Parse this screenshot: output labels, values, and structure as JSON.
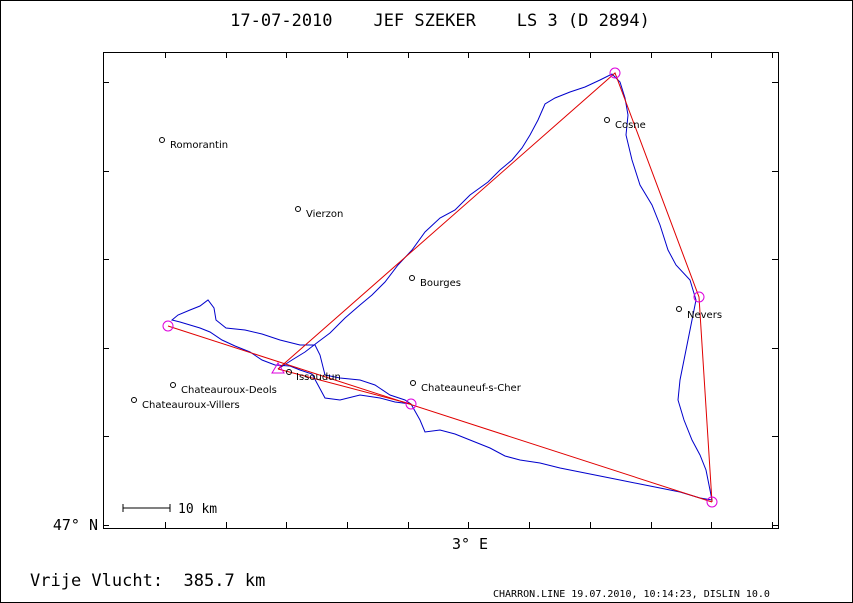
{
  "header": {
    "title": "17-07-2010    JEF SZEKER    LS 3 (D 2894)"
  },
  "map": {
    "cities": [
      "Romorantin",
      "Vierzon",
      "Bourges",
      "Cosne",
      "Nevers",
      "Issoudun",
      "Chateauneuf-s-Cher",
      "Chateauroux-Deols",
      "Chateauroux-Villers"
    ],
    "y_axis_label": "47° N",
    "x_axis_label": "3° E",
    "scale_label": "10 km"
  },
  "footer": {
    "distance": "Vrije Vlucht:  385.7 km",
    "credit": "CHARRON.LINE 19.07.2010, 10:14:23, DISLIN 10.0"
  }
}
